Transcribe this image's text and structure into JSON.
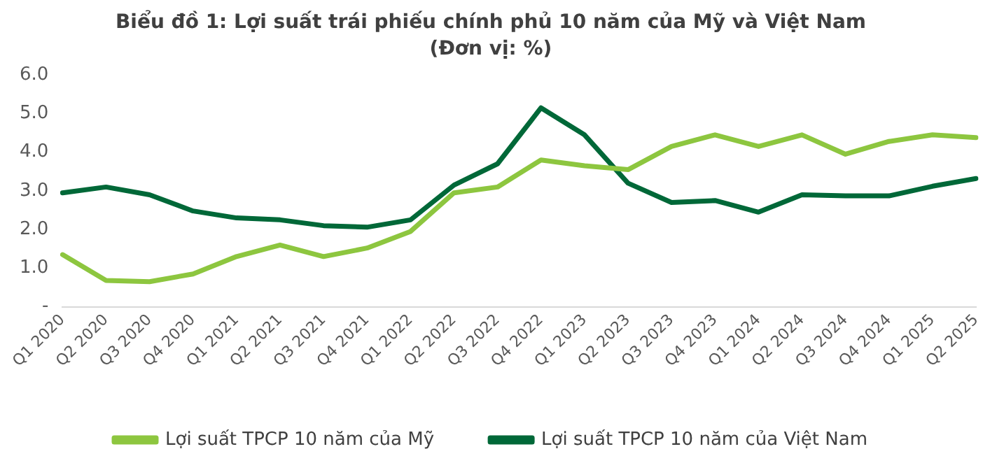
{
  "chart_data": {
    "type": "line",
    "title": "Biểu đồ 1: Lợi suất trái phiếu chính phủ 10 năm của Mỹ và Việt Nam",
    "subtitle": "(Đơn vị: %)",
    "categories": [
      "Q1 2020",
      "Q2 2020",
      "Q3 2020",
      "Q4 2020",
      "Q1 2021",
      "Q2 2021",
      "Q3 2021",
      "Q4 2021",
      "Q1 2022",
      "Q2 2022",
      "Q3 2022",
      "Q4 2022",
      "Q1 2023",
      "Q2 2023",
      "Q3 2023",
      "Q4 2023",
      "Q1 2024",
      "Q2 2024",
      "Q3 2024",
      "Q4 2024",
      "Q1 2025",
      "Q2 2025"
    ],
    "series": [
      {
        "name": "Lợi suất TPCP 10 năm của Mỹ",
        "color": "#8dc63f",
        "values": [
          1.35,
          0.68,
          0.65,
          0.85,
          1.3,
          1.6,
          1.3,
          1.52,
          1.95,
          2.95,
          3.1,
          3.8,
          3.65,
          3.55,
          4.15,
          4.45,
          4.15,
          4.45,
          3.95,
          4.28,
          4.45,
          4.38
        ]
      },
      {
        "name": "Lợi suất TPCP 10 năm của Việt Nam",
        "color": "#006838",
        "values": [
          2.95,
          3.1,
          2.9,
          2.48,
          2.3,
          2.25,
          2.1,
          2.06,
          2.25,
          3.15,
          3.7,
          5.15,
          4.45,
          3.2,
          2.7,
          2.75,
          2.45,
          2.9,
          2.87,
          2.87,
          3.12,
          3.32
        ]
      }
    ],
    "ylim": [
      0,
      6
    ],
    "yticks": [
      {
        "value": 0,
        "label": "-"
      },
      {
        "value": 1,
        "label": "1.0"
      },
      {
        "value": 2,
        "label": "2.0"
      },
      {
        "value": 3,
        "label": "3.0"
      },
      {
        "value": 4,
        "label": "4.0"
      },
      {
        "value": 5,
        "label": "5.0"
      },
      {
        "value": 6,
        "label": "6.0"
      }
    ],
    "grid": false,
    "legend": "bottom",
    "marker": "none",
    "line_style": "solid"
  }
}
